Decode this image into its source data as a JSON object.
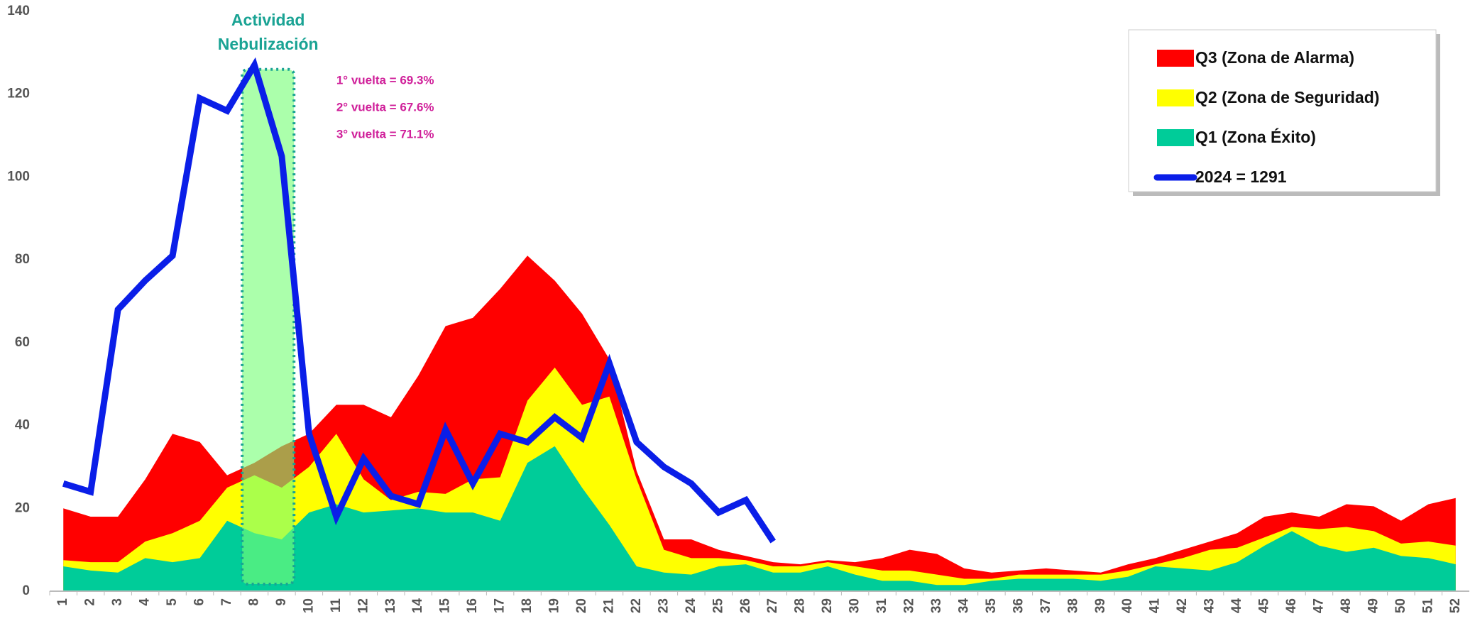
{
  "chart_data": {
    "type": "area",
    "categories": [
      "1",
      "2",
      "3",
      "4",
      "5",
      "6",
      "7",
      "8",
      "9",
      "10",
      "11",
      "12",
      "13",
      "14",
      "15",
      "16",
      "17",
      "18",
      "19",
      "20",
      "21",
      "22",
      "23",
      "24",
      "25",
      "26",
      "27",
      "28",
      "29",
      "30",
      "31",
      "32",
      "33",
      "34",
      "35",
      "36",
      "37",
      "38",
      "39",
      "40",
      "41",
      "42",
      "43",
      "44",
      "45",
      "46",
      "47",
      "48",
      "49",
      "50",
      "51",
      "52"
    ],
    "series": [
      {
        "name": "Q3 (Zona de Alarma)",
        "color": "#ff0000",
        "values": [
          20,
          18,
          18,
          27,
          38,
          36,
          28,
          31,
          35,
          38,
          45,
          45,
          42,
          52,
          64,
          66,
          73,
          81,
          75,
          67,
          56,
          29,
          12.5,
          12.5,
          10,
          8.5,
          7,
          6.5,
          7.5,
          7,
          8,
          10,
          9,
          5.5,
          4.5,
          5,
          5.5,
          5,
          4.5,
          6.5,
          8,
          10,
          12,
          14,
          18,
          19,
          18,
          21,
          20.5,
          17,
          21,
          22.5
        ]
      },
      {
        "name": "Q2 (Zona de Seguridad)",
        "color": "#ffff00",
        "values": [
          7.5,
          7,
          7,
          12,
          14,
          17,
          25,
          28,
          25,
          30,
          38,
          27,
          22,
          24,
          23.5,
          27,
          27.5,
          46,
          54,
          45,
          47,
          27,
          10,
          8,
          8,
          7.5,
          6,
          6,
          7,
          6,
          5,
          5,
          4,
          3,
          3,
          4,
          4,
          4,
          4,
          5,
          6.5,
          8,
          10,
          10.5,
          13,
          15.5,
          15,
          15.5,
          14.5,
          11.5,
          12,
          11
        ]
      },
      {
        "name": "Q1 (Zona Éxito)",
        "color": "#00cc99",
        "values": [
          6,
          5,
          4.5,
          8,
          7,
          8,
          17,
          14,
          12.5,
          19,
          21,
          19,
          19.5,
          20,
          19,
          19,
          17,
          31,
          35,
          25,
          16,
          6,
          4.5,
          4,
          6,
          6.5,
          4.5,
          4.5,
          6,
          4,
          2.5,
          2.5,
          1.5,
          1.5,
          2.5,
          3,
          3,
          3,
          2.5,
          3.5,
          6,
          5.5,
          5,
          7,
          11,
          14.5,
          11,
          9.5,
          10.5,
          8.5,
          8,
          6.5
        ]
      },
      {
        "name": "2024 = 1291",
        "type": "line",
        "color": "#0a1ee8",
        "values": [
          26,
          24,
          68,
          75,
          81,
          119,
          116,
          127,
          105,
          38,
          18,
          32,
          23,
          21,
          39,
          26,
          38,
          36,
          42,
          37,
          55,
          36,
          30,
          26,
          19,
          22,
          12,
          null,
          null,
          null,
          null,
          null,
          null,
          null,
          null,
          null,
          null,
          null,
          null,
          null,
          null,
          null,
          null,
          null,
          null,
          null,
          null,
          null,
          null,
          null,
          null,
          null
        ]
      }
    ],
    "highlight_title": [
      "Actividad",
      "Nebulización"
    ],
    "annotations": [
      "1° vuelta = 69.3%",
      "2° vuelta = 67.6%",
      "3° vuelta = 71.1%"
    ],
    "ylim": [
      0,
      140
    ],
    "yticks": [
      0,
      20,
      40,
      60,
      80,
      100,
      120,
      140
    ],
    "grid": false
  }
}
